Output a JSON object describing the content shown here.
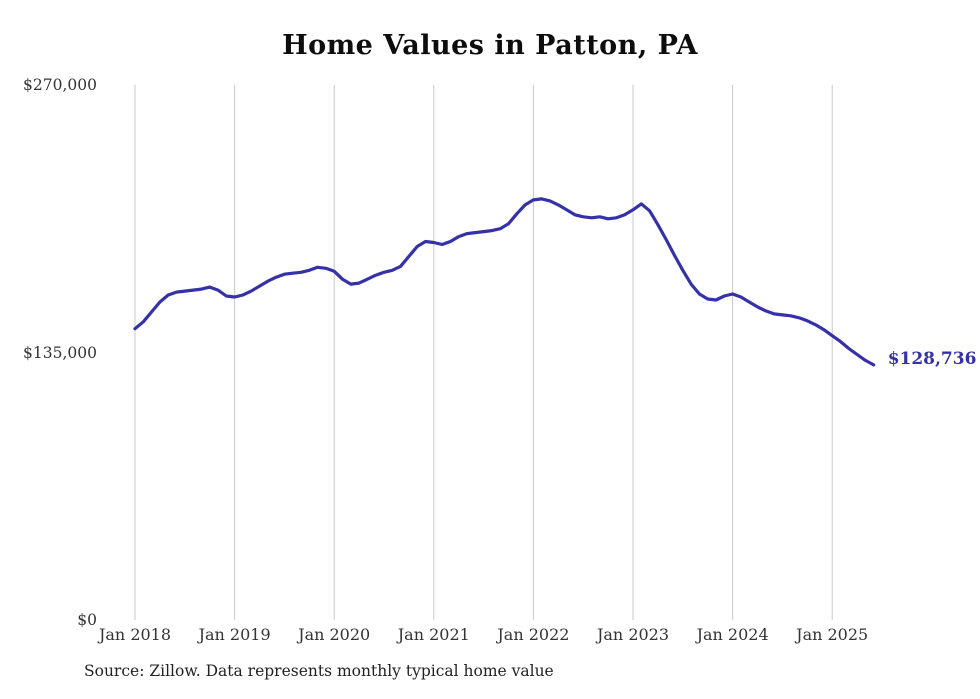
{
  "chart_data": {
    "type": "line",
    "title": "Home Values in Patton, PA",
    "xlabel": "",
    "ylabel": "",
    "ylim": [
      0,
      270000
    ],
    "y_ticks": [
      0,
      135000,
      270000
    ],
    "y_tick_labels": [
      "$0",
      "$135,000",
      "$270,000"
    ],
    "x_tick_indices": [
      0,
      12,
      24,
      36,
      48,
      60,
      72,
      84
    ],
    "x_tick_labels": [
      "Jan 2018",
      "Jan 2019",
      "Jan 2020",
      "Jan 2021",
      "Jan 2022",
      "Jan 2023",
      "Jan 2024",
      "Jan 2025"
    ],
    "grid": "vertical-only",
    "legend": "none",
    "line_color": "#3531a8",
    "grid_color": "#c9c9c9",
    "end_label": "$128,736",
    "end_value": 128736,
    "source": "Source: Zillow. Data represents monthly typical home value",
    "x": [
      "2018-01",
      "2018-02",
      "2018-03",
      "2018-04",
      "2018-05",
      "2018-06",
      "2018-07",
      "2018-08",
      "2018-09",
      "2018-10",
      "2018-11",
      "2018-12",
      "2019-01",
      "2019-02",
      "2019-03",
      "2019-04",
      "2019-05",
      "2019-06",
      "2019-07",
      "2019-08",
      "2019-09",
      "2019-10",
      "2019-11",
      "2019-12",
      "2020-01",
      "2020-02",
      "2020-03",
      "2020-04",
      "2020-05",
      "2020-06",
      "2020-07",
      "2020-08",
      "2020-09",
      "2020-10",
      "2020-11",
      "2020-12",
      "2021-01",
      "2021-02",
      "2021-03",
      "2021-04",
      "2021-05",
      "2021-06",
      "2021-07",
      "2021-08",
      "2021-09",
      "2021-10",
      "2021-11",
      "2021-12",
      "2022-01",
      "2022-02",
      "2022-03",
      "2022-04",
      "2022-05",
      "2022-06",
      "2022-07",
      "2022-08",
      "2022-09",
      "2022-10",
      "2022-11",
      "2022-12",
      "2023-01",
      "2023-02",
      "2023-03",
      "2023-04",
      "2023-05",
      "2023-06",
      "2023-07",
      "2023-08",
      "2023-09",
      "2023-10",
      "2023-11",
      "2023-12",
      "2024-01",
      "2024-02",
      "2024-03",
      "2024-04",
      "2024-05",
      "2024-06",
      "2024-07",
      "2024-08",
      "2024-09",
      "2024-10",
      "2024-11",
      "2024-12",
      "2025-01",
      "2025-02",
      "2025-03",
      "2025-04",
      "2025-05",
      "2025-06"
    ],
    "series": [
      {
        "name": "Typical home value",
        "values": [
          147000,
          150500,
          155500,
          160500,
          164000,
          165500,
          166000,
          166500,
          167000,
          168000,
          166500,
          163500,
          163000,
          164000,
          166000,
          168500,
          171000,
          173000,
          174500,
          175000,
          175500,
          176500,
          178000,
          177500,
          176000,
          172000,
          169500,
          170000,
          172000,
          174000,
          175500,
          176500,
          178500,
          183500,
          188500,
          191000,
          190500,
          189500,
          191000,
          193500,
          195000,
          195500,
          196000,
          196500,
          197500,
          200000,
          205000,
          209500,
          212000,
          212500,
          211500,
          209500,
          207000,
          204500,
          203500,
          203000,
          203500,
          202500,
          203000,
          204500,
          207000,
          210000,
          206500,
          199500,
          192000,
          184000,
          176500,
          169500,
          164500,
          162000,
          161500,
          163500,
          164500,
          163000,
          160500,
          158000,
          156000,
          154500,
          154000,
          153500,
          152500,
          151000,
          149000,
          146500,
          143500,
          140500,
          137000,
          134000,
          131000,
          128736
        ]
      }
    ]
  }
}
